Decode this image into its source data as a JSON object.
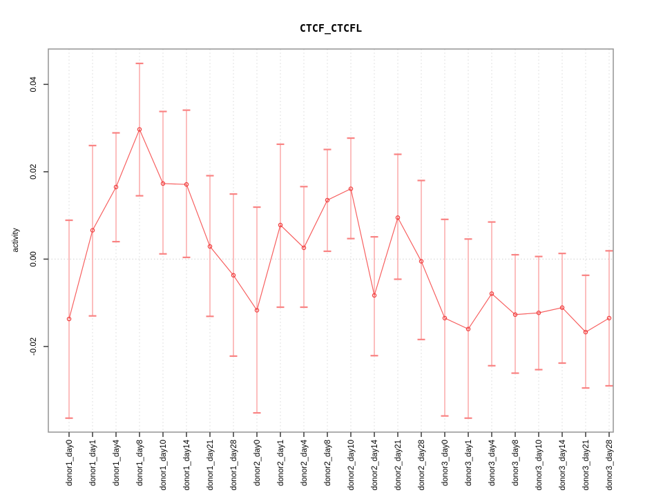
{
  "chart_data": {
    "type": "line",
    "title": "CTCF_CTCFL",
    "xlabel": "",
    "ylabel": "activity",
    "categories": [
      "donor1_day0",
      "donor1_day1",
      "donor1_day4",
      "donor1_day8",
      "donor1_day10",
      "donor1_day14",
      "donor1_day21",
      "donor1_day28",
      "donor2_day0",
      "donor2_day1",
      "donor2_day4",
      "donor2_day8",
      "donor2_day10",
      "donor2_day14",
      "donor2_day21",
      "donor2_day28",
      "donor3_day0",
      "donor3_day1",
      "donor3_day4",
      "donor3_day8",
      "donor3_day10",
      "donor3_day14",
      "donor3_day21",
      "donor3_day28"
    ],
    "series": [
      {
        "name": "activity",
        "marker": "open-circle",
        "values": [
          -0.0137,
          0.0066,
          0.0165,
          0.0297,
          0.0173,
          0.0171,
          0.0029,
          -0.0037,
          -0.0117,
          0.0078,
          0.0026,
          0.0135,
          0.0161,
          -0.0083,
          0.0095,
          -0.0005,
          -0.0135,
          -0.016,
          -0.0079,
          -0.0127,
          -0.0123,
          -0.0111,
          -0.0167,
          -0.0135
        ],
        "error_upper": [
          0.0089,
          0.026,
          0.0289,
          0.0448,
          0.0338,
          0.0341,
          0.0191,
          0.0149,
          0.0119,
          0.0263,
          0.0166,
          0.0251,
          0.0277,
          0.0051,
          0.024,
          0.018,
          0.0091,
          0.0046,
          0.0085,
          0.001,
          0.0006,
          0.0013,
          -0.0037,
          0.0019
        ],
        "error_lower": [
          -0.0364,
          -0.013,
          0.004,
          0.0145,
          0.0012,
          0.0004,
          -0.0131,
          -0.0222,
          -0.0352,
          -0.011,
          -0.011,
          0.0018,
          0.0047,
          -0.0221,
          -0.0046,
          -0.0184,
          -0.0359,
          -0.0364,
          -0.0244,
          -0.0261,
          -0.0253,
          -0.0238,
          -0.0295,
          -0.029
        ]
      }
    ],
    "yticks": [
      {
        "value": -0.02,
        "label": "-0.02"
      },
      {
        "value": 0.0,
        "label": "0.00"
      },
      {
        "value": 0.02,
        "label": "0.02"
      },
      {
        "value": 0.04,
        "label": "0.04"
      }
    ],
    "ylim": [
      -0.0396,
      0.0481
    ],
    "grid": {
      "vertical_gridlines": "dashed at every category",
      "zero_line": "dotted at y = 0.00"
    },
    "legend": "none"
  },
  "colors": {
    "point": "#f04141",
    "connect_line": "#f75f5f",
    "error_bar": "#fba3a3",
    "error_cap": "#f98282",
    "gridline": "#e2e2e2",
    "zero_line": "#d9d9d9",
    "box_border": "#999999",
    "axis": "#454545",
    "background": "#ffffff"
  }
}
